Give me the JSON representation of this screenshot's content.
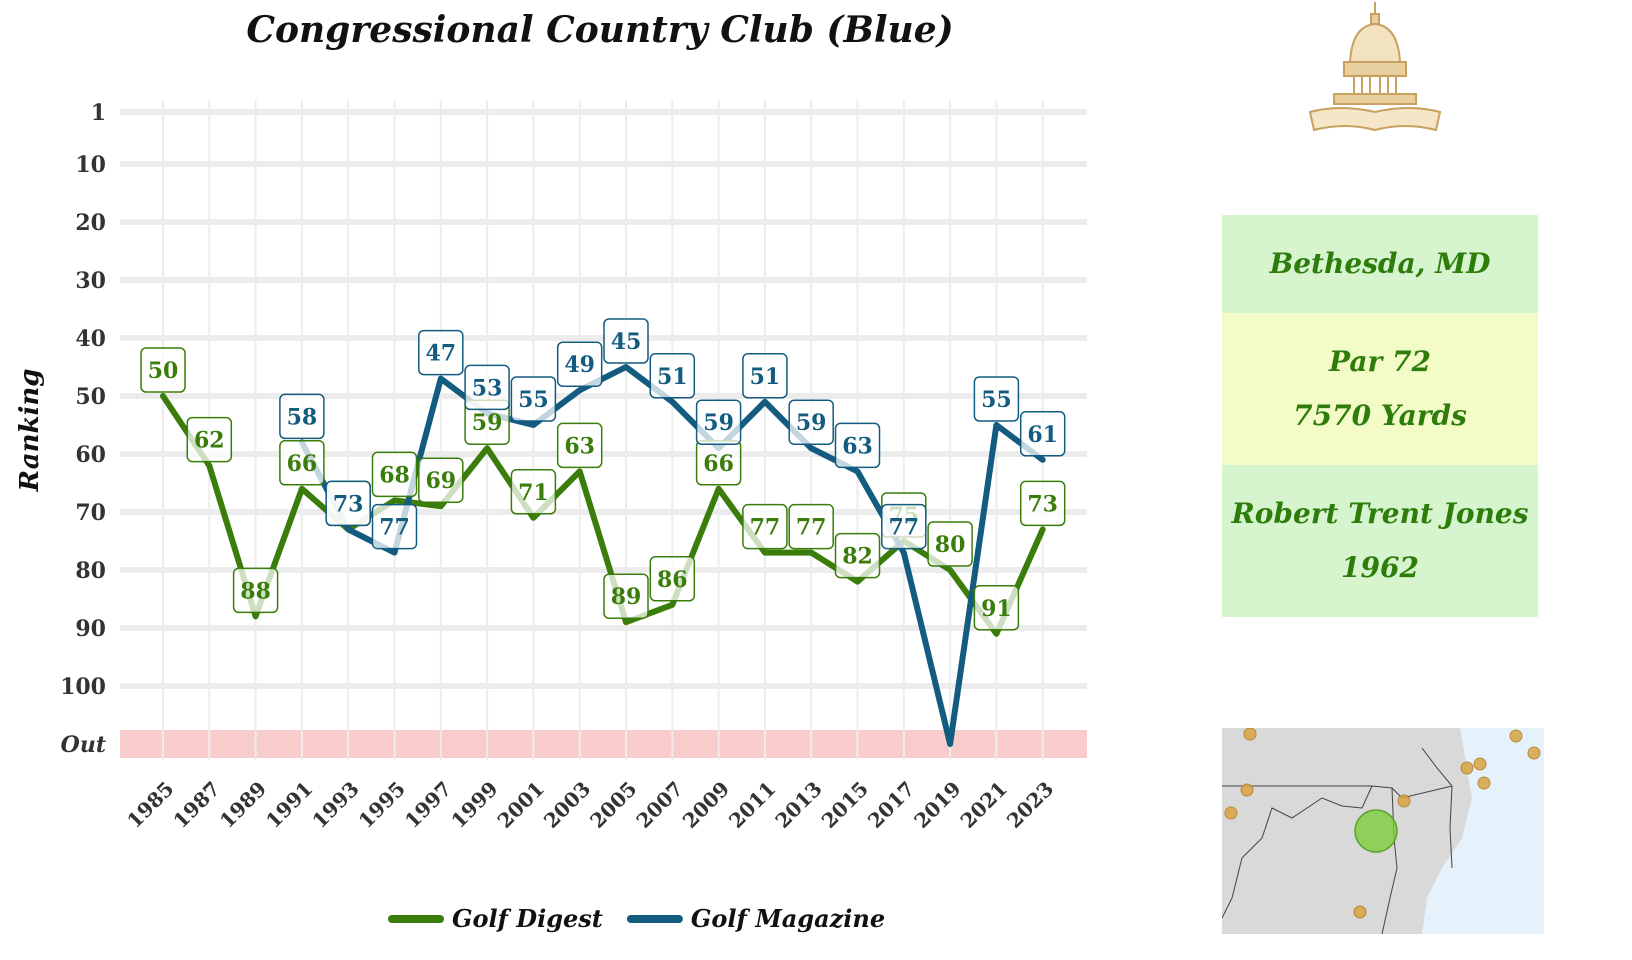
{
  "chart_data": {
    "type": "line",
    "title": "Congressional Country Club (Blue)",
    "ylabel": "Ranking",
    "xlabel": "",
    "x": [
      "1985",
      "1987",
      "1989",
      "1991",
      "1993",
      "1995",
      "1997",
      "1999",
      "2001",
      "2003",
      "2005",
      "2007",
      "2009",
      "2011",
      "2013",
      "2015",
      "2017",
      "2019",
      "2021",
      "2023"
    ],
    "y_ticks": [
      "1",
      "10",
      "20",
      "30",
      "40",
      "50",
      "60",
      "70",
      "80",
      "90",
      "100",
      "Out"
    ],
    "y_inverted": true,
    "out_band_label": "Out",
    "grid": true,
    "legend_position": "bottom",
    "series": [
      {
        "name": "Golf Digest",
        "color": "#3a7d0a",
        "values": [
          50,
          62,
          88,
          66,
          73,
          68,
          69,
          59,
          71,
          63,
          89,
          86,
          66,
          77,
          77,
          82,
          75,
          80,
          91,
          73
        ]
      },
      {
        "name": "Golf Magazine",
        "color": "#135c80",
        "values": [
          null,
          null,
          null,
          58,
          73,
          77,
          47,
          53,
          55,
          49,
          45,
          51,
          59,
          51,
          59,
          63,
          77,
          "Out",
          55,
          61
        ]
      }
    ]
  },
  "info": {
    "location": "Bethesda, MD",
    "par": "Par 72",
    "yards": "7570 Yards",
    "architect": "Robert Trent Jones",
    "year": "1962"
  },
  "logo": {
    "text": "Congressional",
    "color": "#c8a060"
  },
  "map": {
    "highlight_color": "#7ccc3a",
    "marker_color": "#d9a441",
    "land_color": "#d9d9d9",
    "water_color": "#e6f2fb"
  }
}
